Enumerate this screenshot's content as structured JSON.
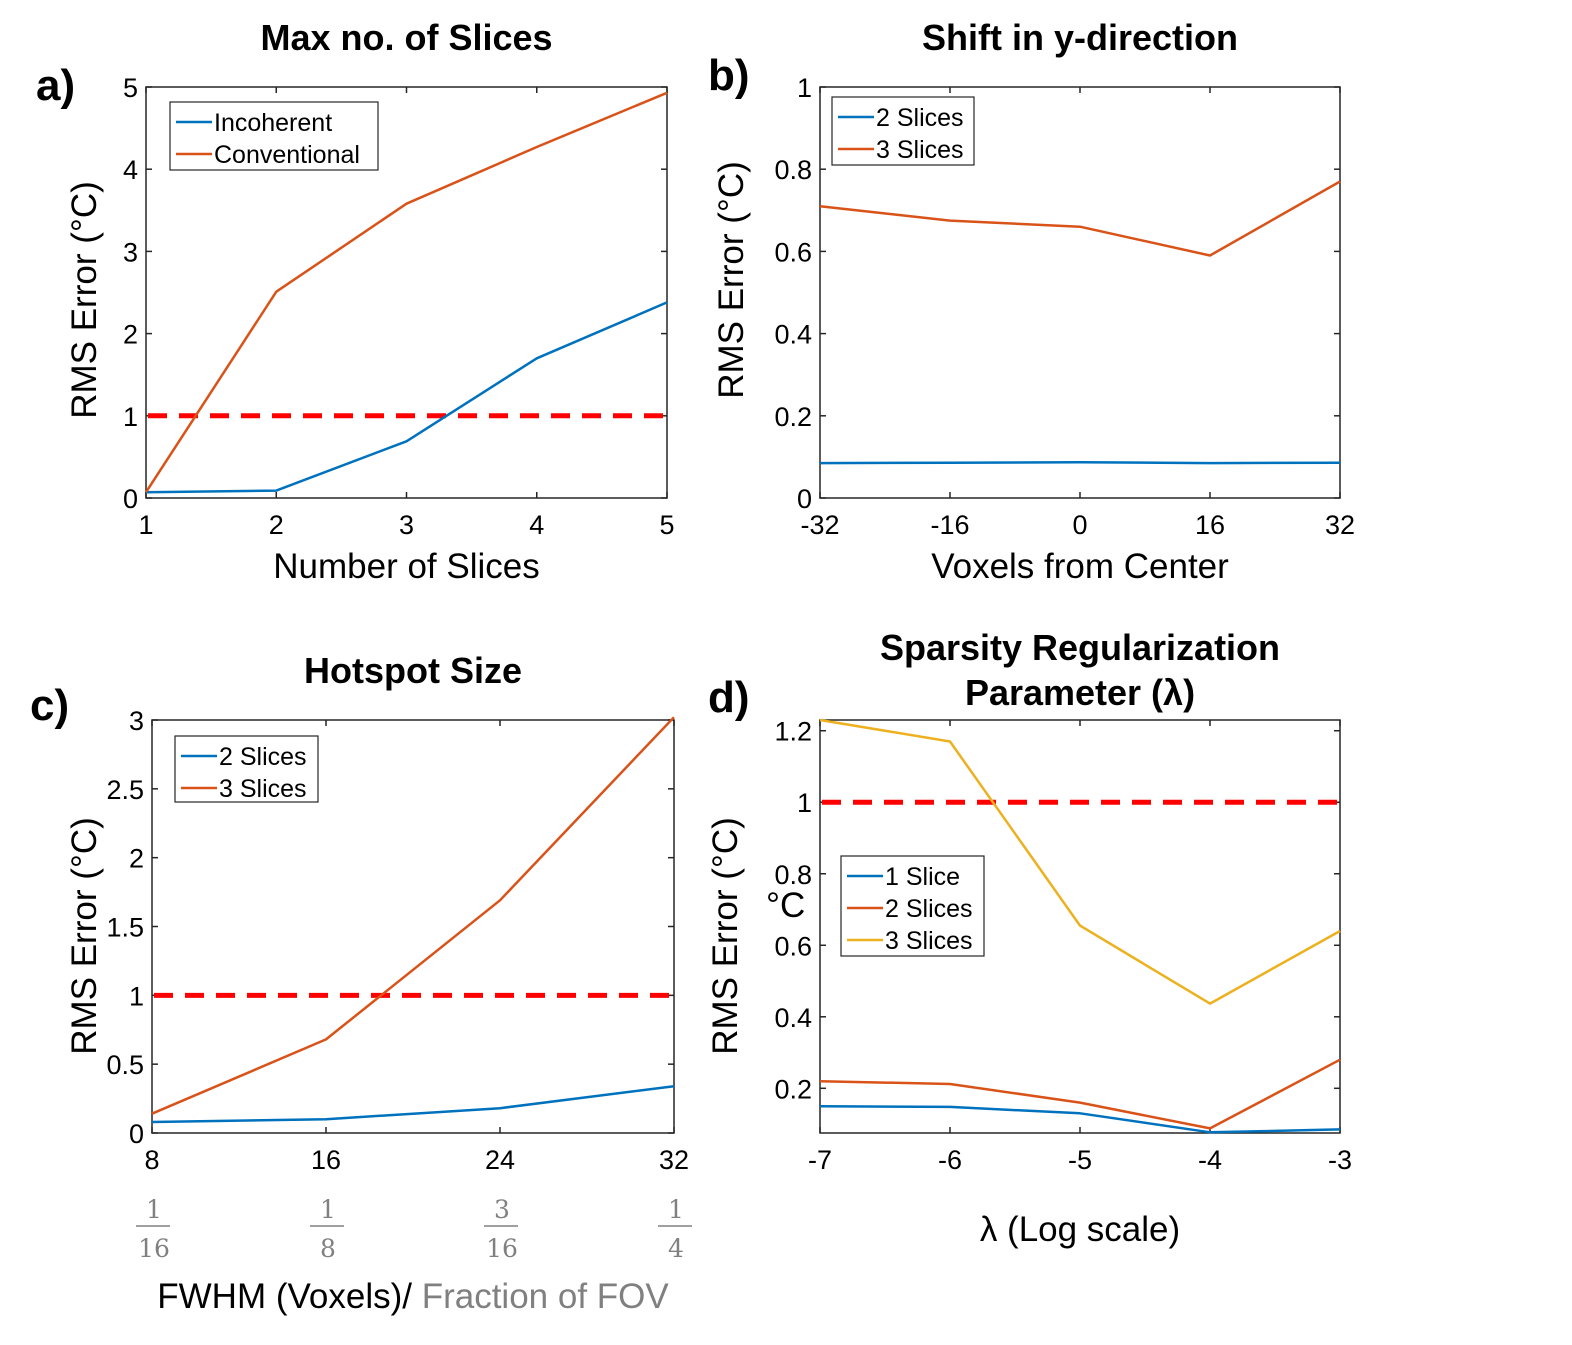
{
  "colors": {
    "blue": "#0072BD",
    "orange": "#D95319",
    "yellow": "#EDB120",
    "threshold": "#FF0000"
  },
  "chart_data": [
    {
      "panel_label": "a)",
      "type": "line",
      "title": "Max no. of Slices",
      "xlabel": "Number of Slices",
      "ylabel": "RMS Error (°C)",
      "xlim": [
        1,
        5
      ],
      "ylim": [
        0,
        5
      ],
      "xticks": [
        1,
        2,
        3,
        4,
        5
      ],
      "xtick_labels": [
        "1",
        "2",
        "3",
        "4",
        "5"
      ],
      "yticks": [
        0,
        1,
        2,
        3,
        4,
        5
      ],
      "ytick_labels": [
        "0",
        "1",
        "2",
        "3",
        "4",
        "5"
      ],
      "x": [
        1,
        2,
        3,
        4,
        5
      ],
      "series": [
        {
          "name": "Incoherent",
          "color": "#0072BD",
          "values": [
            0.07,
            0.09,
            0.69,
            1.7,
            2.38
          ]
        },
        {
          "name": "Conventional",
          "color": "#D95319",
          "values": [
            0.07,
            2.51,
            3.58,
            4.27,
            4.93
          ]
        }
      ],
      "threshold": 1
    },
    {
      "panel_label": "b)",
      "type": "line",
      "title": "Shift in y-direction",
      "xlabel": "Voxels from Center",
      "ylabel": "RMS Error (°C)",
      "xlim": [
        -32,
        32
      ],
      "ylim": [
        0,
        1
      ],
      "xticks": [
        -32,
        -16,
        0,
        16,
        32
      ],
      "xtick_labels": [
        "-32",
        "-16",
        "0",
        "16",
        "32"
      ],
      "yticks": [
        0,
        0.2,
        0.4,
        0.6,
        0.8,
        1
      ],
      "ytick_labels": [
        "0",
        "0.2",
        "0.4",
        "0.6",
        "0.8",
        "1"
      ],
      "x": [
        -32,
        -16,
        0,
        16,
        32
      ],
      "series": [
        {
          "name": "2 Slices",
          "color": "#0072BD",
          "values": [
            0.085,
            0.086,
            0.087,
            0.085,
            0.086
          ]
        },
        {
          "name": "3 Slices",
          "color": "#D95319",
          "values": [
            0.71,
            0.675,
            0.66,
            0.59,
            0.77
          ]
        }
      ]
    },
    {
      "panel_label": "c)",
      "type": "line",
      "title": "Hotspot Size",
      "xlabel": "FWHM (Voxels)/ ",
      "xlabel_gray": "Fraction of FOV",
      "ylabel": "RMS Error (°C)",
      "xlim": [
        8,
        32
      ],
      "ylim": [
        0,
        3
      ],
      "xticks": [
        8,
        16,
        24,
        32
      ],
      "xtick_labels": [
        "8",
        "16",
        "24",
        "32"
      ],
      "xtick_fractions": [
        {
          "num": "1",
          "den": "16"
        },
        {
          "num": "1",
          "den": "8"
        },
        {
          "num": "3",
          "den": "16"
        },
        {
          "num": "1",
          "den": "4"
        }
      ],
      "yticks": [
        0,
        0.5,
        1,
        1.5,
        2,
        2.5,
        3
      ],
      "ytick_labels": [
        "0",
        "0.5",
        "1",
        "1.5",
        "2",
        "2.5",
        "3"
      ],
      "x": [
        8,
        16,
        24,
        32
      ],
      "series": [
        {
          "name": "2 Slices",
          "color": "#0072BD",
          "values": [
            0.08,
            0.1,
            0.18,
            0.34
          ]
        },
        {
          "name": "3 Slices",
          "color": "#D95319",
          "values": [
            0.14,
            0.68,
            1.69,
            3.02
          ]
        }
      ],
      "threshold": 1
    },
    {
      "panel_label": "d)",
      "type": "line",
      "title_lines": [
        "Sparsity Regularization",
        "Parameter (λ)"
      ],
      "xlabel": "λ (Log scale)",
      "ylabel": "RMS Error (°C)",
      "ylabel_extra": "°C",
      "xlim": [
        -7,
        -3
      ],
      "ylim": [
        0.075,
        1.23
      ],
      "xticks": [
        -7,
        -6,
        -5,
        -4,
        -3
      ],
      "xtick_labels": [
        "-7",
        "-6",
        "-5",
        "-4",
        "-3"
      ],
      "yticks": [
        0.2,
        0.4,
        0.6,
        0.8,
        1,
        1.2
      ],
      "ytick_labels": [
        "0.2",
        "0.4",
        "0.6",
        "0.8",
        "1",
        "1.2"
      ],
      "x": [
        -7,
        -6,
        -5,
        -4,
        -3
      ],
      "series": [
        {
          "name": "1 Slice",
          "color": "#0072BD",
          "values": [
            0.15,
            0.148,
            0.13,
            0.077,
            0.085
          ]
        },
        {
          "name": "2 Slices",
          "color": "#D95319",
          "values": [
            0.22,
            0.212,
            0.16,
            0.088,
            0.28
          ]
        },
        {
          "name": "3 Slices",
          "color": "#EDB120",
          "values": [
            1.23,
            1.17,
            0.655,
            0.437,
            0.64
          ]
        }
      ],
      "threshold": 1
    }
  ]
}
